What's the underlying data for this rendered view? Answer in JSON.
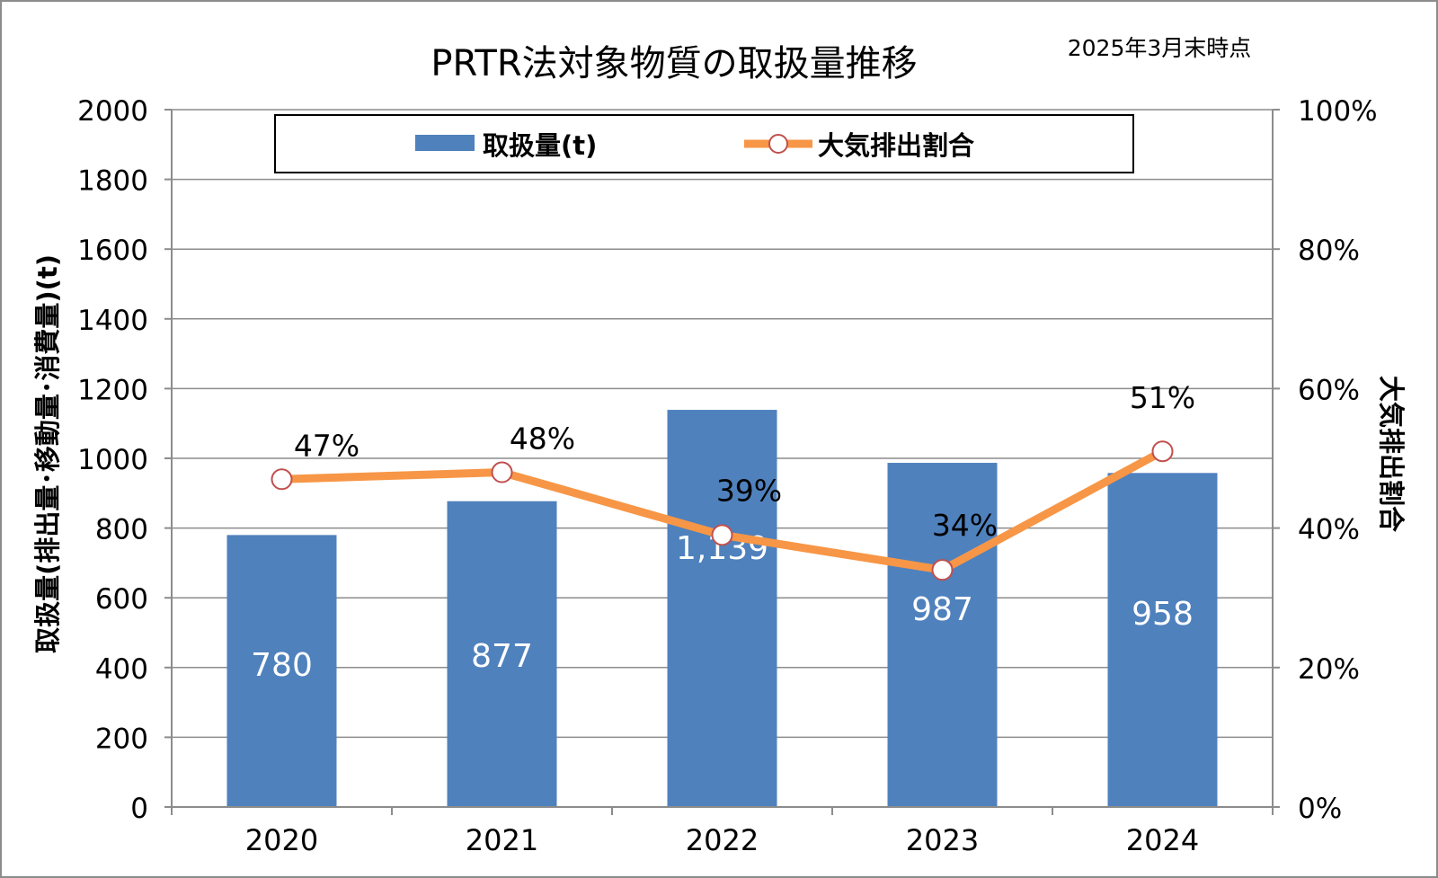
{
  "chart_data": {
    "type": "bar",
    "title": "PRTR法対象物質の取扱量推移",
    "subtitle": "2025年3月末時点",
    "categories": [
      "2020",
      "2021",
      "2022",
      "2023",
      "2024"
    ],
    "series": [
      {
        "name": "取扱量(t)",
        "type": "bar",
        "axis": "left",
        "values": [
          780,
          877,
          1139,
          987,
          958
        ],
        "labels": [
          "780",
          "877",
          "1,139",
          "987",
          "958"
        ],
        "color": "#4f81bd"
      },
      {
        "name": "大気排出割合",
        "type": "line",
        "axis": "right",
        "values": [
          47,
          48,
          39,
          34,
          51
        ],
        "labels": [
          "47%",
          "48%",
          "39%",
          "34%",
          "51%"
        ],
        "color": "#f79646"
      }
    ],
    "ylabel": "取扱量(排出量･移動量･消費量)(t)",
    "y2label": "大気排出割合",
    "ylim": [
      0,
      2000
    ],
    "y2lim": [
      0,
      100
    ],
    "yticks": [
      "0",
      "200",
      "400",
      "600",
      "800",
      "1000",
      "1200",
      "1400",
      "1600",
      "1800",
      "2000"
    ],
    "y2ticks": [
      "0%",
      "20%",
      "40%",
      "60%",
      "80%",
      "100%"
    ],
    "legend_position": "top",
    "grid": true
  }
}
